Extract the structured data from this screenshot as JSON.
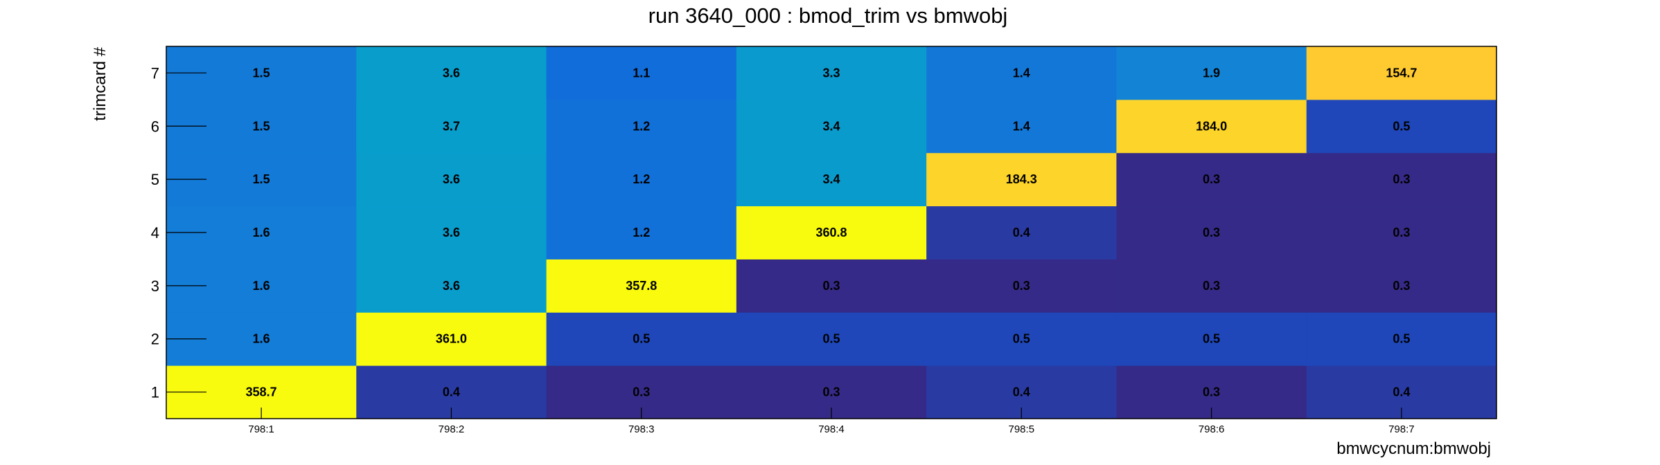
{
  "chart_data": {
    "type": "heatmap",
    "title": "run 3640_000 : bmod_trim vs bmwobj",
    "xlabel": "bmwcycnum:bmwobj",
    "ylabel": "trimcard #",
    "x_categories": [
      "798:1",
      "798:2",
      "798:3",
      "798:4",
      "798:5",
      "798:6",
      "798:7"
    ],
    "y_categories": [
      "1",
      "2",
      "3",
      "4",
      "5",
      "6",
      "7"
    ],
    "values": [
      [
        358.7,
        0.4,
        0.3,
        0.3,
        0.4,
        0.3,
        0.4
      ],
      [
        1.6,
        361.0,
        0.5,
        0.5,
        0.5,
        0.5,
        0.5
      ],
      [
        1.6,
        3.6,
        357.8,
        0.3,
        0.3,
        0.3,
        0.3
      ],
      [
        1.6,
        3.6,
        1.2,
        360.8,
        0.4,
        0.3,
        0.3
      ],
      [
        1.5,
        3.6,
        1.2,
        3.4,
        184.3,
        0.3,
        0.3
      ],
      [
        1.5,
        3.7,
        1.2,
        3.4,
        1.4,
        184.0,
        0.5
      ],
      [
        1.5,
        3.6,
        1.1,
        3.3,
        1.4,
        1.9,
        154.7
      ]
    ],
    "value_labels": [
      [
        "358.7",
        "0.4",
        "0.3",
        "0.3",
        "0.4",
        "0.3",
        "0.4"
      ],
      [
        "1.6",
        "361.0",
        "0.5",
        "0.5",
        "0.5",
        "0.5",
        "0.5"
      ],
      [
        "1.6",
        "3.6",
        "357.8",
        "0.3",
        "0.3",
        "0.3",
        "0.3"
      ],
      [
        "1.6",
        "3.6",
        "1.2",
        "360.8",
        "0.4",
        "0.3",
        "0.3"
      ],
      [
        "1.5",
        "3.6",
        "1.2",
        "3.4",
        "184.3",
        "0.3",
        "0.3"
      ],
      [
        "1.5",
        "3.7",
        "1.2",
        "3.4",
        "1.4",
        "184.0",
        "0.5"
      ],
      [
        "1.5",
        "3.6",
        "1.1",
        "3.3",
        "1.4",
        "1.9",
        "154.7"
      ]
    ],
    "color_scale": "log",
    "colormap": [
      "#352a87",
      "#0f5cdd",
      "#1481d6",
      "#06a4ca",
      "#2eb7a4",
      "#87bf77",
      "#d1bb59",
      "#fec832",
      "#f9fb0e"
    ],
    "grid": false,
    "legend": "none"
  }
}
